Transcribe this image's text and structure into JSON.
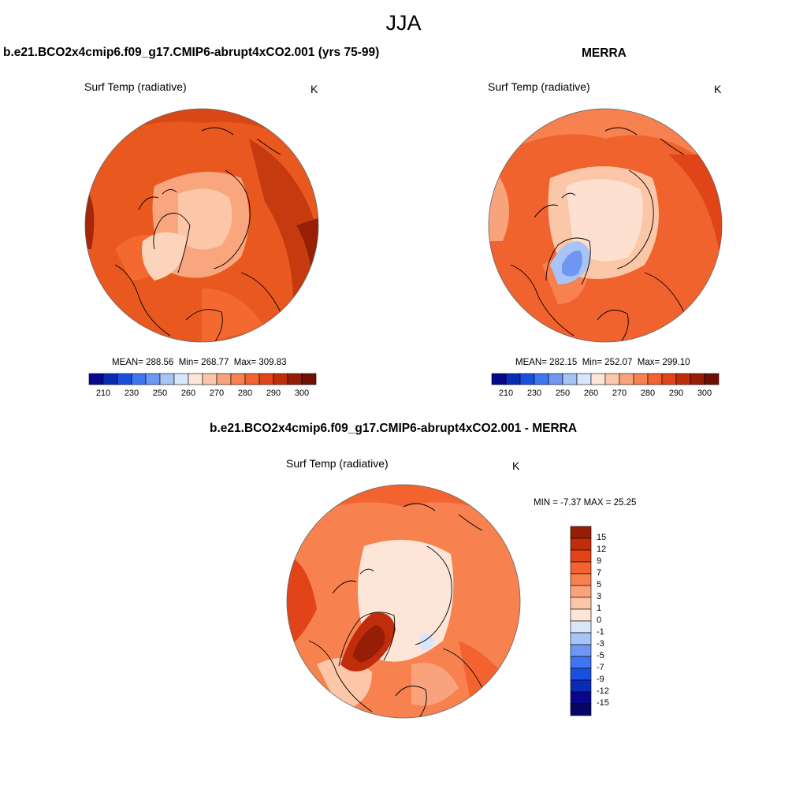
{
  "page": {
    "season": "JJA"
  },
  "panels": [
    {
      "title": "b.e21.BCO2x4cmip6.f09_g17.CMIP6-abrupt4xCO2.001 (yrs 75-99)",
      "variable": "Surf Temp (radiative)",
      "units": "K",
      "stats": {
        "mean": "288.56",
        "min": "268.77",
        "max": "309.83"
      }
    },
    {
      "title": "MERRA",
      "variable": "Surf Temp (radiative)",
      "units": "K",
      "stats": {
        "mean": "282.15",
        "min": "252.07",
        "max": "299.10"
      }
    }
  ],
  "abs_colorbar": {
    "labels": [
      "210",
      "230",
      "250",
      "260",
      "270",
      "280",
      "290",
      "300"
    ],
    "colors": [
      "#08088c",
      "#0a2cb4",
      "#1a4fe0",
      "#3f75f0",
      "#6f97f2",
      "#a8c3f5",
      "#d7e6fb",
      "#fde6d8",
      "#fbc7a8",
      "#f9a37c",
      "#f7814f",
      "#f3632f",
      "#e04418",
      "#c02d0a",
      "#961d06",
      "#6e1004"
    ]
  },
  "diff_panel": {
    "title": "b.e21.BCO2x4cmip6.f09_g17.CMIP6-abrupt4xCO2.001 - MERRA",
    "variable": "Surf Temp (radiative)",
    "units": "K",
    "minmax_text": "MIN =  -7.37 MAX =  25.25",
    "colorbar": {
      "labels": [
        "15",
        "12",
        "9",
        "7",
        "5",
        "3",
        "1",
        "0",
        "-1",
        "-3",
        "-5",
        "-7",
        "-9",
        "-12",
        "-15"
      ],
      "colors": [
        "#961d06",
        "#c02d0a",
        "#e04418",
        "#f3632f",
        "#f7814f",
        "#f9a37c",
        "#fbc7a8",
        "#fde6d8",
        "#d7e6fb",
        "#a8c3f5",
        "#6f97f2",
        "#3f75f0",
        "#1a4fe0",
        "#0a2cb4",
        "#08088c",
        "#05056a"
      ]
    }
  }
}
